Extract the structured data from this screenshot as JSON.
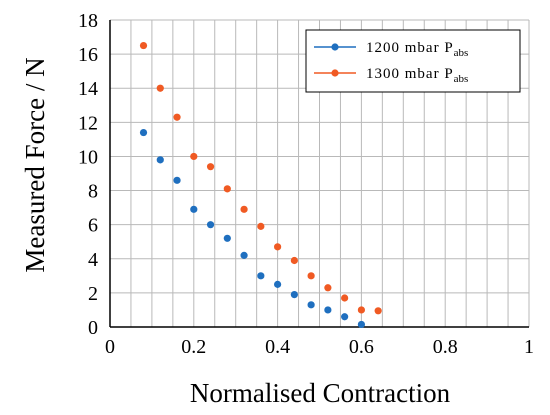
{
  "chart_data": {
    "type": "scatter",
    "title": "",
    "xlabel": "Normalised Contraction",
    "ylabel": "Measured Force / N",
    "xlim": [
      0,
      1
    ],
    "ylim": [
      0,
      18
    ],
    "x_ticks": [
      "0",
      "0.2",
      "0.4",
      "0.6",
      "0.8",
      "1"
    ],
    "y_ticks": [
      "0",
      "2",
      "4",
      "6",
      "8",
      "10",
      "12",
      "14",
      "16",
      "18"
    ],
    "grid": true,
    "legend_position": "top-right",
    "series": [
      {
        "name": "1200 mbar P",
        "name_sub": "abs",
        "color": "#1f6fbf",
        "points": [
          [
            0.08,
            11.4
          ],
          [
            0.12,
            9.8
          ],
          [
            0.16,
            8.6
          ],
          [
            0.2,
            6.9
          ],
          [
            0.24,
            6.0
          ],
          [
            0.28,
            5.2
          ],
          [
            0.32,
            4.2
          ],
          [
            0.36,
            3.0
          ],
          [
            0.4,
            2.5
          ],
          [
            0.44,
            1.9
          ],
          [
            0.48,
            1.3
          ],
          [
            0.52,
            1.0
          ],
          [
            0.56,
            0.6
          ],
          [
            0.6,
            0.15
          ]
        ]
      },
      {
        "name": "1300 mbar P",
        "name_sub": "abs",
        "color": "#f05a23",
        "points": [
          [
            0.08,
            16.5
          ],
          [
            0.12,
            14.0
          ],
          [
            0.16,
            12.3
          ],
          [
            0.2,
            10.0
          ],
          [
            0.24,
            9.4
          ],
          [
            0.28,
            8.1
          ],
          [
            0.32,
            6.9
          ],
          [
            0.36,
            5.9
          ],
          [
            0.4,
            4.7
          ],
          [
            0.44,
            3.9
          ],
          [
            0.48,
            3.0
          ],
          [
            0.52,
            2.3
          ],
          [
            0.56,
            1.7
          ],
          [
            0.6,
            1.0
          ],
          [
            0.64,
            0.95
          ]
        ]
      }
    ]
  }
}
